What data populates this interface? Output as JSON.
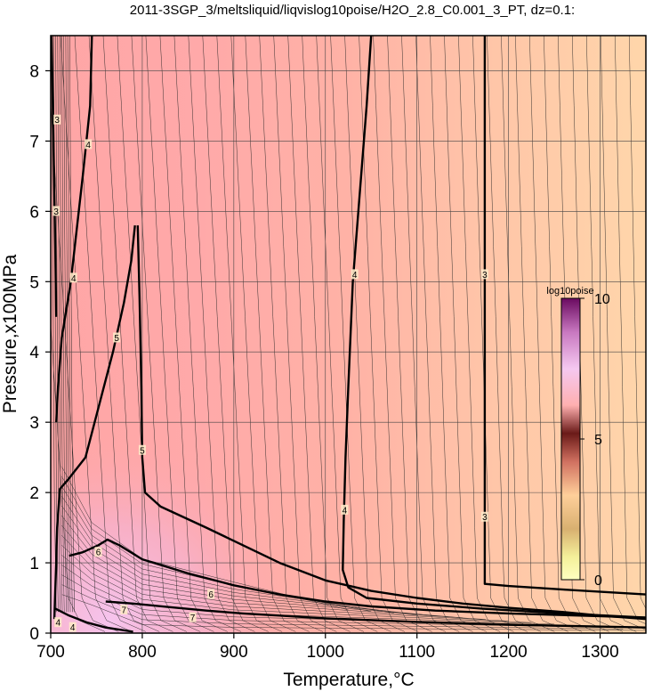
{
  "chart_data": {
    "type": "contour",
    "title": "2011-3SGP_3/meltsliquid/liqvislog10poise/H2O_2.8_C0.001_3_PT, dz=0.1:",
    "xlabel": "Temperature,°C",
    "ylabel": "Pressure,x100MPa",
    "xlim": [
      700,
      1350
    ],
    "ylim": [
      0,
      8.5
    ],
    "x_ticks": [
      "700",
      "800",
      "900",
      "1000",
      "1100",
      "1200",
      "1300"
    ],
    "y_ticks": [
      "0",
      "1",
      "2",
      "3",
      "4",
      "5",
      "6",
      "7",
      "8"
    ],
    "grid": true,
    "colorbar": {
      "title": "log10poise",
      "min": 0,
      "max": 10,
      "tick_labels": [
        "0",
        "5",
        "10"
      ],
      "placement": "right-inside"
    },
    "z_interval": 0.1,
    "major_contours": [
      {
        "level": "3",
        "points": [
          [
            701,
            8.5
          ],
          [
            703,
            7
          ],
          [
            705,
            5.5
          ],
          [
            706,
            4.5
          ]
        ]
      },
      {
        "level": "4",
        "points": [
          [
            745,
            8.5
          ],
          [
            743,
            7.5
          ],
          [
            735,
            6.5
          ],
          [
            722,
            5
          ],
          [
            712,
            4.2
          ],
          [
            708,
            3.5
          ],
          [
            706,
            3
          ]
        ]
      },
      {
        "level": "5",
        "points": [
          [
            792,
            5.8
          ],
          [
            788,
            5.3
          ],
          [
            780,
            4.7
          ],
          [
            768,
            4
          ],
          [
            752,
            3.2
          ],
          [
            738,
            2.5
          ],
          [
            720,
            2.2
          ],
          [
            710,
            2.05
          ],
          [
            707,
            1.5
          ],
          [
            706,
            1
          ],
          [
            705,
            0.6
          ],
          [
            704,
            0.2
          ]
        ]
      },
      {
        "level": "5",
        "points": [
          [
            795,
            5.8
          ],
          [
            797,
            4.8
          ],
          [
            799,
            3.5
          ],
          [
            800,
            2.5
          ],
          [
            803,
            2.0
          ],
          [
            820,
            1.8
          ],
          [
            870,
            1.5
          ],
          [
            950,
            1.0
          ],
          [
            1000,
            0.75
          ],
          [
            1050,
            0.6
          ],
          [
            1100,
            0.5
          ],
          [
            1150,
            0.42
          ],
          [
            1200,
            0.36
          ],
          [
            1260,
            0.3
          ],
          [
            1300,
            0.25
          ],
          [
            1350,
            0.2
          ]
        ]
      },
      {
        "level": "4",
        "points": [
          [
            1050,
            8.5
          ],
          [
            1045,
            7.5
          ],
          [
            1036,
            6
          ],
          [
            1030,
            5
          ],
          [
            1025,
            3.5
          ],
          [
            1022,
            2.5
          ],
          [
            1020,
            1.6
          ],
          [
            1019,
            0.9
          ],
          [
            1025,
            0.65
          ],
          [
            1045,
            0.5
          ],
          [
            1100,
            0.42
          ],
          [
            1170,
            0.35
          ],
          [
            1260,
            0.28
          ],
          [
            1350,
            0.22
          ]
        ]
      },
      {
        "level": "3",
        "points": [
          [
            1174,
            8.5
          ],
          [
            1174,
            6
          ],
          [
            1174,
            4
          ],
          [
            1174,
            2
          ],
          [
            1174,
            0.7
          ],
          [
            1200,
            0.67
          ],
          [
            1260,
            0.62
          ],
          [
            1350,
            0.55
          ]
        ]
      },
      {
        "level": "6",
        "points": [
          [
            720,
            1.1
          ],
          [
            735,
            1.15
          ],
          [
            752,
            1.25
          ],
          [
            762,
            1.33
          ],
          [
            775,
            1.25
          ],
          [
            800,
            1.05
          ],
          [
            850,
            0.85
          ],
          [
            900,
            0.68
          ],
          [
            950,
            0.55
          ],
          [
            1000,
            0.45
          ],
          [
            1050,
            0.38
          ],
          [
            1120,
            0.32
          ],
          [
            1200,
            0.28
          ],
          [
            1350,
            0.22
          ]
        ]
      },
      {
        "level": "7",
        "points": [
          [
            760,
            0.45
          ],
          [
            790,
            0.42
          ],
          [
            830,
            0.37
          ],
          [
            870,
            0.32
          ],
          [
            910,
            0.28
          ],
          [
            950,
            0.25
          ],
          [
            1000,
            0.21
          ],
          [
            1100,
            0.16
          ],
          [
            1200,
            0.12
          ],
          [
            1350,
            0.08
          ]
        ]
      },
      {
        "level": "4",
        "points": [
          [
            705,
            0.35
          ],
          [
            720,
            0.25
          ],
          [
            740,
            0.15
          ],
          [
            760,
            0.08
          ],
          [
            790,
            0.02
          ]
        ]
      }
    ],
    "contour_labels": [
      {
        "text": "4",
        "x": 741,
        "y": 6.95
      },
      {
        "text": "4",
        "x": 725,
        "y": 5.05
      },
      {
        "text": "5",
        "x": 772,
        "y": 4.2
      },
      {
        "text": "5",
        "x": 800,
        "y": 2.6
      },
      {
        "text": "4",
        "x": 1032,
        "y": 5.1
      },
      {
        "text": "4",
        "x": 1021,
        "y": 1.75
      },
      {
        "text": "3",
        "x": 1174,
        "y": 5.1
      },
      {
        "text": "3",
        "x": 1174,
        "y": 1.65
      },
      {
        "text": "6",
        "x": 752,
        "y": 1.15
      },
      {
        "text": "6",
        "x": 875,
        "y": 0.55
      },
      {
        "text": "7",
        "x": 780,
        "y": 0.33
      },
      {
        "text": "7",
        "x": 855,
        "y": 0.22
      },
      {
        "text": "3",
        "x": 707,
        "y": 7.3
      },
      {
        "text": "3",
        "x": 706,
        "y": 6.0
      },
      {
        "text": "4",
        "x": 708,
        "y": 0.15
      },
      {
        "text": "4",
        "x": 724,
        "y": 0.08
      }
    ],
    "colors": {
      "low": "#ffd3a8",
      "mid": "#ffaaaa",
      "high": "#f9c8e8"
    }
  }
}
